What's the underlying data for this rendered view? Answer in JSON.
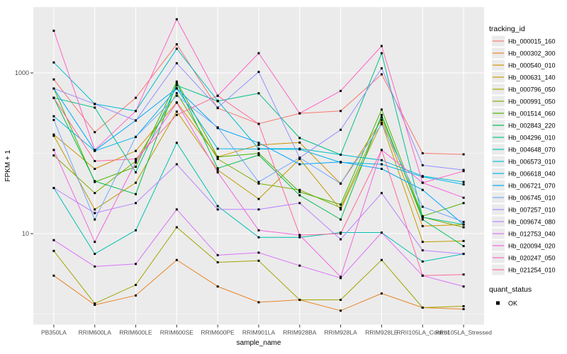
{
  "figure": {
    "background": "#FFFFFF",
    "panel_background": "#EBEBEB",
    "grid_color": "#FFFFFF",
    "axis_text_color": "#4D4D4D",
    "title_color": "#000000",
    "point_color": "#000000"
  },
  "legend": {
    "tracking_title": "tracking_id",
    "quant_title": "quant_status",
    "quant_items": [
      "OK"
    ],
    "key_background": "#EBEBEB"
  },
  "chart_data": {
    "type": "line",
    "title": "",
    "xlabel": "sample_name",
    "ylabel": "FPKM + 1",
    "x_type": "categorical",
    "y_scale": "log10",
    "ylim": [
      1,
      5000
    ],
    "grid": true,
    "legend_position": "right",
    "point_marker": "filled-black-square",
    "y_major_ticks": [
      10,
      1000
    ],
    "y_major_tick_labels": [
      "10",
      "1000"
    ],
    "y_minor_ticks": [
      1,
      100
    ],
    "categories": [
      "PB350LA",
      "RRIM600LA",
      "RRIM600LE",
      "RRIM600SE",
      "RRIM600PE",
      "RRIM901LA",
      "RRIM928BA",
      "RRIM928LA",
      "RRIM928LE",
      "RRII105LA_Control",
      "RRII105LA_Stressed"
    ],
    "series": [
      {
        "name": "Hb_000015_160",
        "color": "#F8766D",
        "values": [
          830,
          183,
          490,
          2270,
          365,
          233,
          314,
          336,
          960,
          100,
          97
        ]
      },
      {
        "name": "Hb_000302_300",
        "color": "#E88526",
        "values": [
          3.0,
          1.3,
          1.7,
          4.7,
          2.2,
          1.4,
          1.5,
          1.1,
          1.8,
          1.2,
          1.15
        ]
      },
      {
        "name": "Hb_000540_010",
        "color": "#D39200",
        "values": [
          171,
          64,
          107,
          430,
          90,
          127,
          136,
          42,
          260,
          12.4,
          13
        ]
      },
      {
        "name": "Hb_000631_140",
        "color": "#C09B00",
        "values": [
          165,
          20,
          43,
          330,
          62,
          27,
          85,
          20,
          240,
          7.9,
          8.1
        ]
      },
      {
        "name": "Hb_000796_050",
        "color": "#A3A500",
        "values": [
          6.1,
          1.35,
          2.3,
          12,
          4.4,
          4.6,
          1.5,
          1.5,
          4.7,
          1.2,
          1.25
        ]
      },
      {
        "name": "Hb_000991_050",
        "color": "#7CAE00",
        "values": [
          94,
          32,
          80,
          560,
          85,
          42,
          35,
          21,
          280,
          16,
          12
        ]
      },
      {
        "name": "Hb_001514_060",
        "color": "#49B500",
        "values": [
          640,
          44,
          68,
          780,
          90,
          100,
          33,
          23,
          350,
          16.5,
          24
        ]
      },
      {
        "name": "Hb_002843_220",
        "color": "#00BC51",
        "values": [
          490,
          45,
          31,
          750,
          65,
          95,
          30,
          15,
          300,
          15,
          7
        ]
      },
      {
        "name": "Hb_004296_010",
        "color": "#00C08B",
        "values": [
          490,
          370,
          58,
          700,
          445,
          558,
          155,
          96,
          1760,
          16,
          13
        ]
      },
      {
        "name": "Hb_004648_070",
        "color": "#00C0B4",
        "values": [
          37,
          5.6,
          11,
          135,
          22,
          9,
          9,
          10.3,
          10.3,
          4.5,
          5.6
        ]
      },
      {
        "name": "Hb_006573_010",
        "color": "#00BDD1",
        "values": [
          1350,
          412,
          336,
          2000,
          450,
          114,
          114,
          96,
          82,
          52,
          44
        ]
      },
      {
        "name": "Hb_006618_040",
        "color": "#00B5EB",
        "values": [
          289,
          107,
          160,
          640,
          114,
          113,
          112,
          77,
          73,
          51,
          41
        ]
      },
      {
        "name": "Hb_006721_070",
        "color": "#00A7FF",
        "values": [
          640,
          108,
          257,
          645,
          206,
          135,
          73,
          78,
          64,
          35,
          13
        ]
      },
      {
        "name": "Hb_006745_010",
        "color": "#72A7FF",
        "values": [
          260,
          15,
          160,
          520,
          210,
          44,
          88,
          42,
          230,
          21.6,
          14
        ]
      },
      {
        "name": "Hb_007257_010",
        "color": "#9590FF",
        "values": [
          640,
          410,
          255,
          1320,
          370,
          1030,
          88,
          196,
          1140,
          71,
          62
        ]
      },
      {
        "name": "Hb_009674_080",
        "color": "#BC81FF",
        "values": [
          37,
          18,
          24,
          73,
          20,
          20,
          24,
          8.5,
          32,
          6.2,
          5.6
        ]
      },
      {
        "name": "Hb_012753_040",
        "color": "#DC71FA",
        "values": [
          8.3,
          3.9,
          4.2,
          20,
          5.4,
          5.8,
          4.0,
          2.8,
          10.3,
          3.0,
          2.2
        ]
      },
      {
        "name": "Hb_020094_020",
        "color": "#F265E0",
        "values": [
          110,
          7.9,
          77,
          425,
          58,
          11,
          9.6,
          2.9,
          110,
          43,
          28
        ]
      },
      {
        "name": "Hb_020247_050",
        "color": "#FF61C7",
        "values": [
          3350,
          110,
          336,
          4650,
          520,
          1760,
          314,
          597,
          2160,
          43,
          60
        ]
      },
      {
        "name": "Hb_021254_010",
        "color": "#FF689E",
        "values": [
          490,
          80,
          85,
          300,
          520,
          232,
          9.6,
          10,
          110,
          3.0,
          3.1
        ]
      }
    ]
  }
}
